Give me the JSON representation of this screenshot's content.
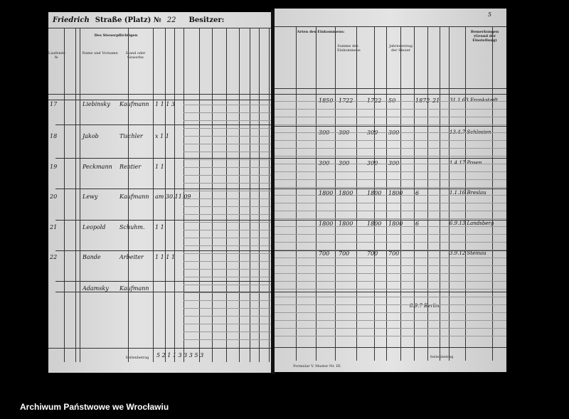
{
  "document": {
    "left_page": {
      "street_label": "Straße (Platz) №",
      "street_name": "Friedrich",
      "house_number": "22",
      "owner_label": "Besitzer:",
      "taxpayer_header": "Des Steuerpflichtigen",
      "name_header": "Name und Vorname",
      "status_header": "Stand oder Gewerbe",
      "running_no_header": "Laufende №",
      "rows": [
        {
          "no": "17",
          "name": "Liebinsky",
          "status": "Kaufmann",
          "marks": "1 1 1 3"
        },
        {
          "no": "18",
          "name": "Jakob",
          "status": "Tischler",
          "marks": "x 1 1"
        },
        {
          "no": "19",
          "name": "Peckmann",
          "status": "Rentier",
          "marks": "1 1"
        },
        {
          "no": "20",
          "name": "Lewy",
          "status": "Kaufmann",
          "marks": "am 30.11.09"
        },
        {
          "no": "21",
          "name": "Leopold",
          "status": "Schuhm.",
          "marks": "1 1"
        },
        {
          "no": "22",
          "name": "Bande",
          "status": "Arbeiter",
          "marks": "1 1 1 1"
        },
        {
          "no": "",
          "name": "Adamsky",
          "status": "Kaufmann",
          "marks": ""
        }
      ],
      "total_label": "Seitenbetrag",
      "total_marks": "5 2 1 1   3 3 3 5 3"
    },
    "right_page": {
      "page_number": "5",
      "income_header": "Arten des Einkommens:",
      "sum_header": "Summe des Einkommens",
      "tax_header": "Jahresbetrag der Steuer",
      "remarks_header": "Bemerkungen (Grund der Einstellung)",
      "rows": [
        {
          "values": [
            "1850",
            "1722",
            "1722",
            "50",
            "1872",
            "21"
          ],
          "remark": "31.1.63 Frankstadt"
        },
        {
          "values": [
            "300",
            "300",
            "300",
            "300"
          ],
          "remark": "13.4.7 Schlesien"
        },
        {
          "values": [
            "300",
            "300",
            "300",
            "300"
          ],
          "remark": "1.4.17 Posen"
        },
        {
          "values": [
            "1800",
            "1800",
            "1800",
            "1800",
            "6"
          ],
          "remark": "1.1.16 Breslau"
        },
        {
          "values": [
            "1800",
            "1800",
            "1800",
            "1800",
            "6"
          ],
          "remark": "6.9.13 Landsberg"
        },
        {
          "values": [
            "700",
            "700",
            "700",
            "700"
          ],
          "remark": "3.9.12 Steinau"
        },
        {
          "values": [],
          "remark": "8.9.7 Berlin"
        }
      ],
      "total_label": "Seitenbetrag",
      "form_label": "Formular V. Muster Nr. III."
    }
  },
  "footer": {
    "archive_name": "Archiwum Państwowe we Wrocławiu"
  }
}
